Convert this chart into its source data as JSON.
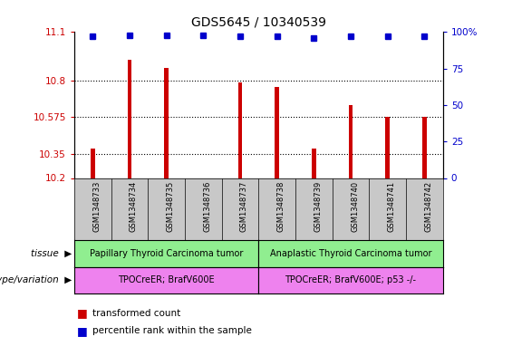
{
  "title": "GDS5645 / 10340539",
  "samples": [
    "GSM1348733",
    "GSM1348734",
    "GSM1348735",
    "GSM1348736",
    "GSM1348737",
    "GSM1348738",
    "GSM1348739",
    "GSM1348740",
    "GSM1348741",
    "GSM1348742"
  ],
  "bar_values": [
    10.38,
    10.93,
    10.88,
    10.2,
    10.79,
    10.76,
    10.38,
    10.65,
    10.575,
    10.575
  ],
  "percentile_values": [
    97,
    98,
    98,
    98,
    97,
    97,
    96,
    97,
    97,
    97
  ],
  "bar_color": "#cc0000",
  "dot_color": "#0000cc",
  "ylim_left": [
    10.2,
    11.1
  ],
  "yticks_left": [
    10.2,
    10.35,
    10.575,
    10.8,
    11.1
  ],
  "ytick_labels_left": [
    "10.2",
    "10.35",
    "10.575",
    "10.8",
    "11.1"
  ],
  "ylim_right": [
    0,
    100
  ],
  "yticks_right": [
    0,
    25,
    50,
    75,
    100
  ],
  "ytick_labels_right": [
    "0",
    "25",
    "50",
    "75",
    "100%"
  ],
  "tissue_group1": "Papillary Thyroid Carcinoma tumor",
  "tissue_group2": "Anaplastic Thyroid Carcinoma tumor",
  "genotype_group1": "TPOCreER; BrafV600E",
  "genotype_group2": "TPOCreER; BrafV600E; p53 -/-",
  "group1_count": 5,
  "group2_count": 5,
  "tissue_color": "#90ee90",
  "genotype_color": "#ee82ee",
  "sample_bg_color": "#c8c8c8",
  "legend_red_label": "transformed count",
  "legend_blue_label": "percentile rank within the sample",
  "left_axis_color": "#cc0000",
  "right_axis_color": "#0000cc",
  "grid_color": "#000000"
}
